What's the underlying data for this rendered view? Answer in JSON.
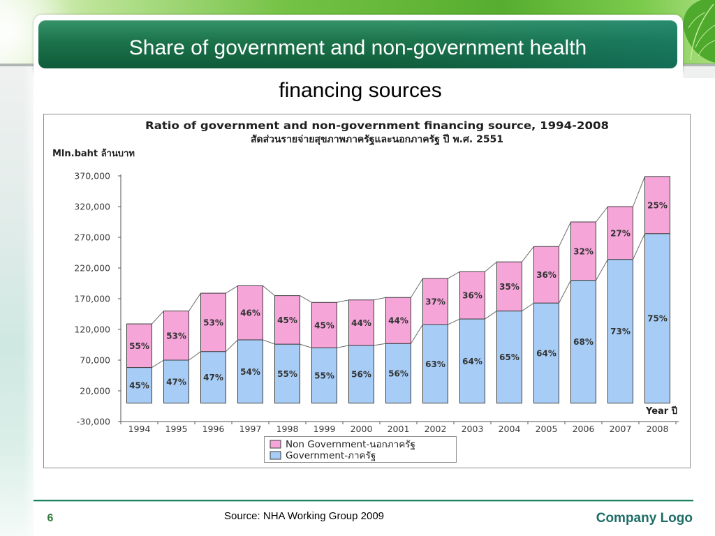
{
  "slide": {
    "title_line1": "Share of government and non-government health",
    "title_line2": "financing sources",
    "page_number": "6",
    "source": "Source: NHA Working Group 2009",
    "logo_text": "Company Logo"
  },
  "colors": {
    "title_bar": "#18704a",
    "title_text": "#ffffff",
    "footer_line": "#1f7f5f",
    "page_number": "#2f7a3a",
    "logo_text": "#1e6d67"
  },
  "chart_data": {
    "type": "bar",
    "stacked": true,
    "title": "Ratio of government and non-government financing source, 1994-2008",
    "subtitle": "สัดส่วนรายจ่ายสุขภาพภาครัฐและนอกภาครัฐ ปี พ.ศ. 2551",
    "ylabel": "Mln.baht ล้านบาท",
    "xlabel": "Year ปี",
    "ylim": [
      -30000,
      370000
    ],
    "yticks": [
      370000,
      320000,
      270000,
      220000,
      170000,
      120000,
      70000,
      20000,
      -30000
    ],
    "ytick_labels": [
      "370,000",
      "320,000",
      "270,000",
      "220,000",
      "170,000",
      "120,000",
      "70,000",
      "20,000",
      "-30,000"
    ],
    "categories": [
      "1994",
      "1995",
      "1996",
      "1997",
      "1998",
      "1999",
      "2000",
      "2001",
      "2002",
      "2003",
      "2004",
      "2005",
      "2006",
      "2007",
      "2008"
    ],
    "series": [
      {
        "name": "Government-ภาครัฐ",
        "color": "#a7cdf6",
        "values": [
          58000,
          70000,
          84000,
          103000,
          96000,
          90000,
          94000,
          97000,
          128000,
          137000,
          150000,
          163000,
          200000,
          234000,
          276000
        ],
        "labels": [
          "45%",
          "47%",
          "47%",
          "54%",
          "55%",
          "55%",
          "56%",
          "56%",
          "63%",
          "64%",
          "65%",
          "64%",
          "68%",
          "73%",
          "75%"
        ]
      },
      {
        "name": "Non Government-นอกภาครัฐ",
        "color": "#f6a5d9",
        "values": [
          71000,
          80000,
          95000,
          88000,
          79000,
          74000,
          74000,
          75000,
          75000,
          77000,
          80000,
          92000,
          95000,
          86000,
          93000
        ],
        "labels": [
          "55%",
          "53%",
          "53%",
          "46%",
          "45%",
          "45%",
          "44%",
          "44%",
          "37%",
          "36%",
          "35%",
          "36%",
          "32%",
          "27%",
          "25%"
        ]
      }
    ],
    "grid": false,
    "series_lines": true,
    "legend": "bottom-center"
  }
}
